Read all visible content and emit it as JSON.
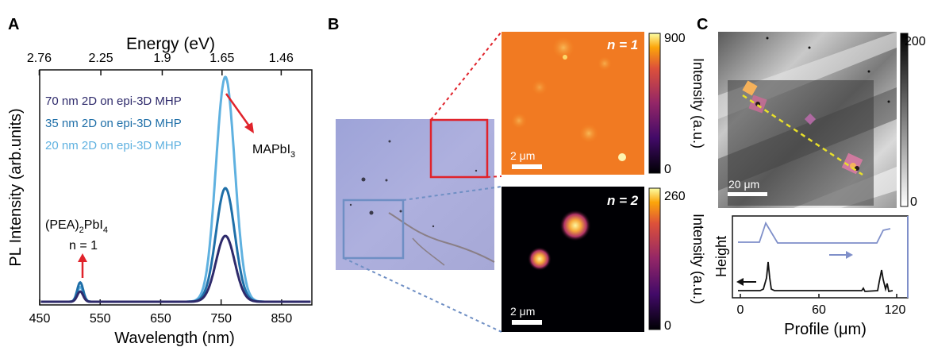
{
  "panel_labels": {
    "a": "A",
    "b": "B",
    "c": "C"
  },
  "colors": {
    "dark_navy": "#2e2a6b",
    "mid_blue": "#1f6fa8",
    "light_blue": "#5fb1e0",
    "red_arrow": "#e0232b",
    "blue_box": "#6f8fc4",
    "yellow_line": "#e8e02a",
    "profile_blue": "#7f8fc9"
  },
  "panel_a": {
    "top_axis_label": "Energy (eV)",
    "top_ticks": [
      "2.76",
      "2.25",
      "1.9",
      "1.65",
      "1.46"
    ],
    "ylabel": "PL Intensity (arb.units)",
    "xlabel": "Wavelength (nm)",
    "legend": [
      "70 nm 2D on epi-3D MHP",
      "35 nm 2D on epi-3D MHP",
      "20 nm 2D on epi-3D MHP"
    ],
    "annotation_3d": "MAPbI",
    "annotation_3d_sub": "3",
    "annotation_2d_a": "(PEA)",
    "annotation_2d_a_sub": "2",
    "annotation_2d_b": "PbI",
    "annotation_2d_b_sub": "4",
    "annotation_n": "n = 1"
  },
  "chart_data": {
    "type": "line",
    "xlabel": "Wavelength (nm)",
    "ylabel": "PL Intensity (arb.units)",
    "x2label": "Energy (eV)",
    "x_ticks": [
      450,
      550,
      650,
      750,
      850
    ],
    "xlim": [
      450,
      900
    ],
    "top_axis_ticks": [
      "2.76",
      "2.25",
      "1.9",
      "1.65",
      "1.46"
    ],
    "series": [
      {
        "name": "70 nm 2D on epi-3D MHP",
        "color": "#2e2a6b",
        "peak_2d_nm": 517,
        "peak_2d": 0.045,
        "peak_3d_nm": 757,
        "peak_3d": 0.29
      },
      {
        "name": "35 nm 2D on epi-3D MHP",
        "color": "#1f6fa8",
        "peak_2d_nm": 517,
        "peak_2d": 0.085,
        "peak_3d_nm": 757,
        "peak_3d": 0.5
      },
      {
        "name": "20 nm 2D on epi-3D MHP",
        "color": "#5fb1e0",
        "peak_2d_nm": 517,
        "peak_2d": 0.065,
        "peak_3d_nm": 757,
        "peak_3d": 0.99
      }
    ]
  },
  "panel_b": {
    "n1_label": "n = 1",
    "n2_label": "n = 2",
    "scalebar": "2 μm",
    "colorbar1_max": "900",
    "colorbar1_min": "0",
    "colorbar2_max": "260",
    "colorbar2_min": "0",
    "colorbar_label": "Intensity (a.u.)"
  },
  "panel_c": {
    "scalebar": "20 μm",
    "colorbar_max": "200",
    "colorbar_min": "0",
    "profile_ylabel": "Height",
    "profile_xlabel": "Profile (μm)",
    "profile_ticks": [
      "0",
      "60",
      "120"
    ]
  }
}
